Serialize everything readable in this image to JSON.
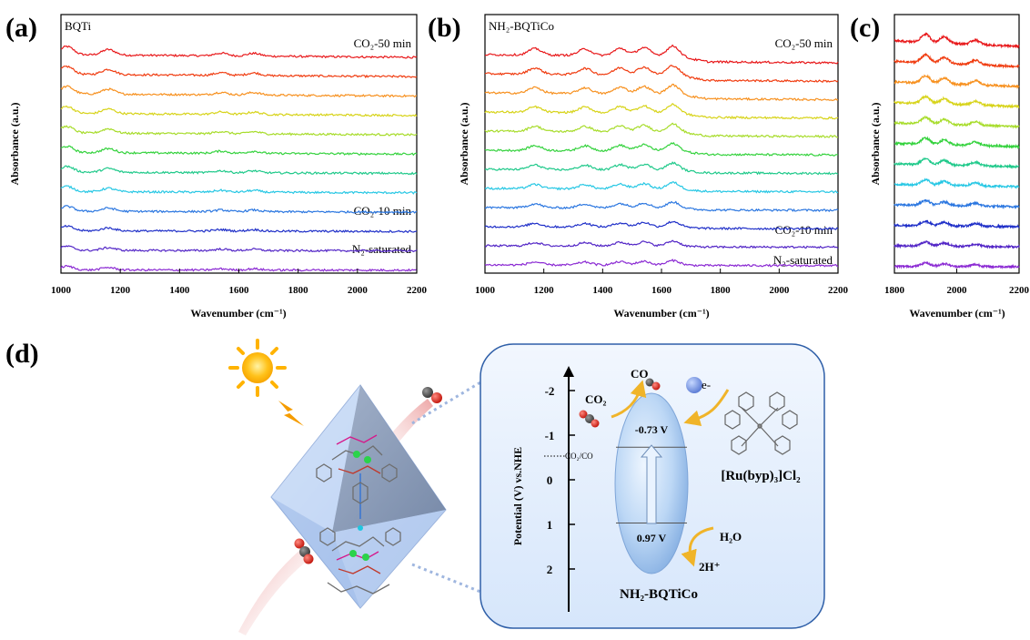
{
  "chart_data": [
    {
      "type": "line",
      "panel_label": "(a)",
      "sample": "BQTi",
      "xlabel": "Wavenumber (cm⁻¹)",
      "ylabel": "Absorbance (a.u.)",
      "xlim": [
        1000,
        2200
      ],
      "x_ticks": [
        "1000",
        "1200",
        "1400",
        "1600",
        "1800",
        "2000",
        "2200"
      ],
      "annotations": [
        "CO₂-50 min",
        "CO₂-10 min",
        "N₂-saturated"
      ],
      "series_colors": [
        "#e8181a",
        "#f03c10",
        "#f7901e",
        "#d7d318",
        "#a7dc2a",
        "#34d23d",
        "#1fc98a",
        "#26c7e4",
        "#2a76e0",
        "#1f2fc8",
        "#5225c6",
        "#8b2ad3"
      ],
      "features_cm-1": [
        1020,
        1160,
        1540,
        1650
      ]
    },
    {
      "type": "line",
      "panel_label": "(b)",
      "sample": "NH₂-BQTiCo",
      "xlabel": "Wavenumber (cm⁻¹)",
      "ylabel": "Absorbance (a.u.)",
      "xlim": [
        1000,
        2200
      ],
      "x_ticks": [
        "1000",
        "1200",
        "1400",
        "1600",
        "1800",
        "2000",
        "2200"
      ],
      "annotations": [
        "CO₂-50 min",
        "CO₂-10 min",
        "N₂-saturated"
      ],
      "series_colors": [
        "#e8181a",
        "#f03c10",
        "#f7901e",
        "#d7d318",
        "#a7dc2a",
        "#34d23d",
        "#1fc98a",
        "#26c7e4",
        "#2a76e0",
        "#1f2fc8",
        "#5225c6",
        "#8b2ad3"
      ],
      "features_cm-1": [
        1170,
        1340,
        1460,
        1540,
        1640
      ]
    },
    {
      "type": "line",
      "panel_label": "(c)",
      "xlabel": "Wavenumber (cm⁻¹)",
      "ylabel": "Absorbance (a.u.)",
      "xlim": [
        1800,
        2200
      ],
      "x_ticks": [
        "1800",
        "2000",
        "2200"
      ],
      "series_colors": [
        "#e8181a",
        "#f03c10",
        "#f7901e",
        "#d7d318",
        "#a7dc2a",
        "#34d23d",
        "#1fc98a",
        "#26c7e4",
        "#2a76e0",
        "#1f2fc8",
        "#5225c6",
        "#8b2ad3"
      ],
      "features_cm-1": [
        1900,
        1960,
        2060
      ]
    }
  ],
  "panel_d": {
    "panel_label": "(d)",
    "y_axis_label": "Potential (V) vs.NHE",
    "y_ticks": [
      "-2",
      "-1",
      "0",
      "1",
      "2"
    ],
    "redox_line_label": "CO₂/CO",
    "cb_label": "-0.73 V",
    "vb_label": "0.97 V",
    "co2_label": "CO₂",
    "co_label": "CO",
    "electron_label": "e-",
    "ps_label": "[Ru(byp)₃]Cl₂",
    "h2o_label": "H₂O",
    "proton_label": "2H⁺",
    "catalyst_label": "NH₂-BQTiCo",
    "cb_value": -0.73,
    "vb_value": 0.97
  }
}
